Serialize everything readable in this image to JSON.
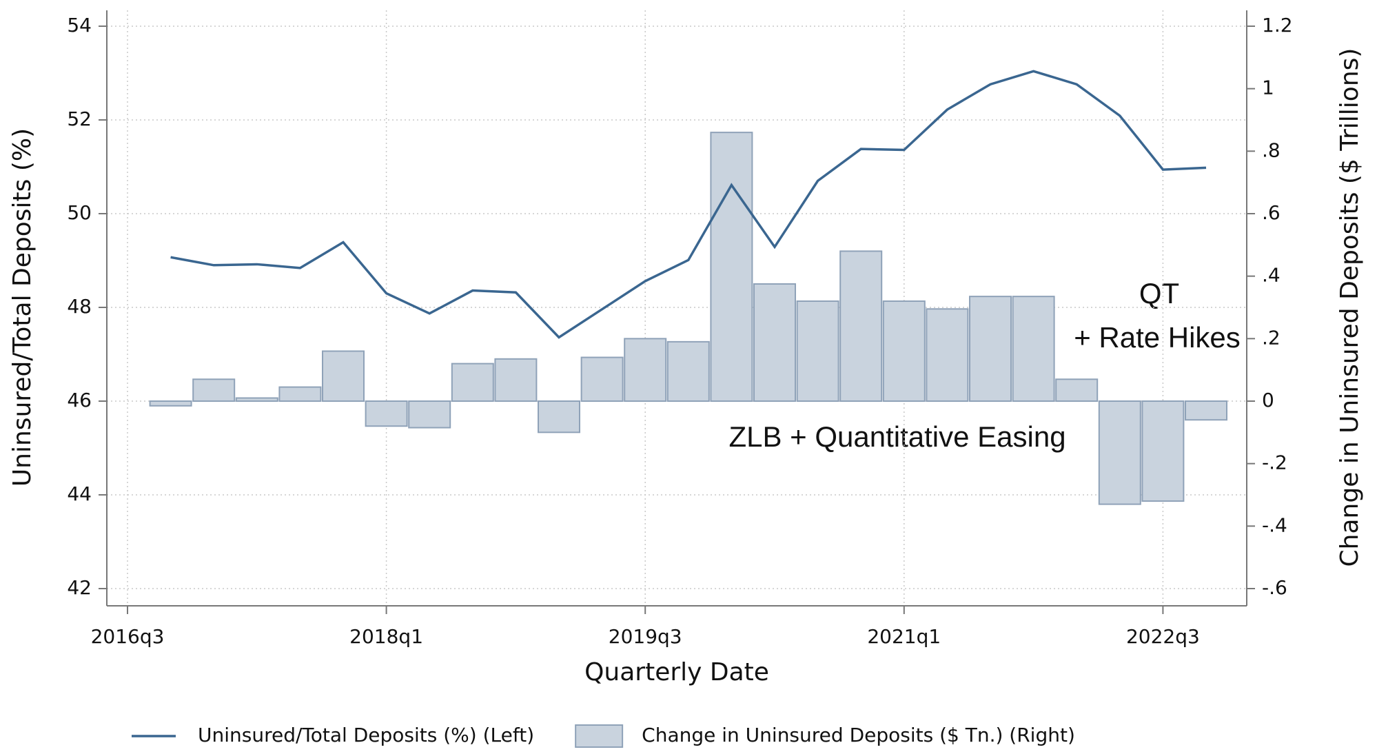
{
  "chart_data": {
    "type": "combo",
    "x_label": "Quarterly Date",
    "y_label": "Uninsured/Total Deposits (%)",
    "y2_label": "Change in Uninsured Deposits ($ Trillions)",
    "x": [
      "2016q4",
      "2017q1",
      "2017q2",
      "2017q3",
      "2017q4",
      "2018q1",
      "2018q2",
      "2018q3",
      "2018q4",
      "2019q1",
      "2019q2",
      "2019q3",
      "2019q4",
      "2020q1",
      "2020q2",
      "2020q3",
      "2020q4",
      "2021q1",
      "2021q2",
      "2021q3",
      "2021q4",
      "2022q1",
      "2022q2",
      "2022q3",
      "2022q4"
    ],
    "xticks": [
      "2016q3",
      "2018q1",
      "2019q3",
      "2021q1",
      "2022q3"
    ],
    "ylim": [
      42,
      54
    ],
    "yticks": [
      42,
      44,
      46,
      48,
      50,
      52,
      54
    ],
    "y2lim": [
      -0.6,
      1.2
    ],
    "y2ticks": [
      {
        "value": -0.6,
        "label": "-.6"
      },
      {
        "value": -0.4,
        "label": "-.4"
      },
      {
        "value": -0.2,
        "label": "-.2"
      },
      0,
      {
        "value": 0.2,
        "label": ".2"
      },
      {
        "value": 0.4,
        "label": ".4"
      },
      {
        "value": 0.6,
        "label": ".6"
      },
      {
        "value": 0.8,
        "label": ".8"
      },
      1,
      1.2
    ],
    "grid": true,
    "series": [
      {
        "name": "Uninsured/Total Deposits (%) (Left)",
        "type": "line",
        "color": "#3a6690",
        "values": [
          49.07,
          48.9,
          48.92,
          48.84,
          49.39,
          48.3,
          47.87,
          48.36,
          48.32,
          47.36,
          47.96,
          48.56,
          49.01,
          50.61,
          49.29,
          50.7,
          51.38,
          51.36,
          52.22,
          52.76,
          53.04,
          52.76,
          52.09,
          50.94,
          50.98
        ]
      },
      {
        "name": "Change in Uninsured Deposits ($ Tn.) (Right)",
        "type": "bar",
        "axis": "y2",
        "color": "#c9d3de",
        "values": [
          -0.015,
          0.07,
          0.01,
          0.045,
          0.16,
          -0.08,
          -0.085,
          0.12,
          0.135,
          -0.1,
          0.14,
          0.2,
          0.19,
          0.86,
          0.375,
          0.32,
          0.48,
          0.32,
          0.295,
          0.335,
          0.335,
          0.07,
          -0.33,
          -0.32,
          -0.06
        ]
      }
    ],
    "annotations": [
      "QT",
      "+ Rate Hikes",
      "ZLB + Quantitative Easing"
    ],
    "legend": "bottom"
  }
}
